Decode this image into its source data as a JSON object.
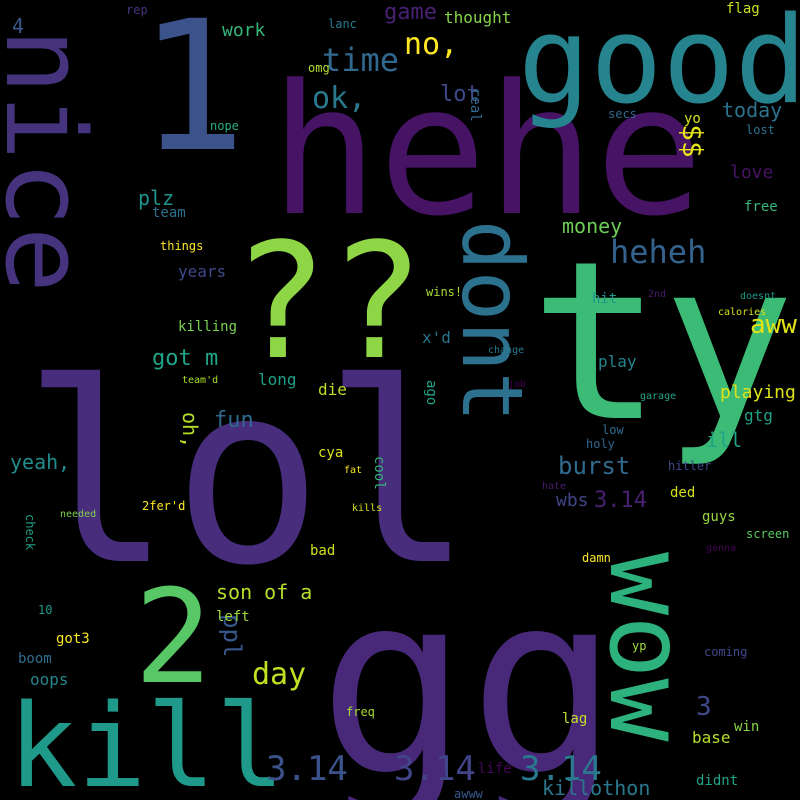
{
  "words": [
    {
      "text": "lol",
      "color": "#472d7b"
    },
    {
      "text": "gg",
      "color": "#482878"
    },
    {
      "text": "hehe",
      "color": "#471365"
    },
    {
      "text": "ty",
      "color": "#3bbb75"
    },
    {
      "text": "good",
      "color": "#25848e"
    },
    {
      "text": "??",
      "color": "#8ed645"
    },
    {
      "text": "1",
      "color": "#3b528b"
    },
    {
      "text": "nice",
      "color": "#46337e"
    },
    {
      "text": "kill",
      "color": "#1f9a8a"
    },
    {
      "text": "2",
      "color": "#58c765"
    },
    {
      "text": "wow",
      "color": "#2db27d"
    },
    {
      "text": "dont",
      "color": "#2c728e"
    },
    {
      "text": "heheh",
      "color": "#33638d"
    },
    {
      "text": "time",
      "color": "#31688e"
    },
    {
      "text": "ok,",
      "color": "#2a788e"
    },
    {
      "text": "no,",
      "color": "#fde725"
    },
    {
      "text": "aww",
      "color": "#e2e418"
    },
    {
      "text": "3.14",
      "color": "#3b528b"
    },
    {
      "text": "3.14",
      "color": "#414487"
    },
    {
      "text": "3.14",
      "color": "#2a788e"
    },
    {
      "text": "burst",
      "color": "#31688e"
    },
    {
      "text": "day",
      "color": "#c2df23"
    },
    {
      "text": "money",
      "color": "#6ece58"
    },
    {
      "text": "killothon",
      "color": "#2a788e"
    },
    {
      "text": "fun",
      "color": "#31688e"
    },
    {
      "text": "son of a",
      "color": "#b5de2b"
    },
    {
      "text": "ppl",
      "color": "#38588c"
    },
    {
      "text": "got m",
      "color": "#20a386"
    },
    {
      "text": "game",
      "color": "#482173"
    },
    {
      "text": "work",
      "color": "#35b779"
    },
    {
      "text": "lot",
      "color": "#3e4989"
    },
    {
      "text": "oh,",
      "color": "#b5de2b"
    },
    {
      "text": "yeah,",
      "color": "#228c8d"
    },
    {
      "text": "plz",
      "color": "#1f968b"
    },
    {
      "text": "today",
      "color": "#2c728e"
    },
    {
      "text": "love",
      "color": "#471365"
    },
    {
      "text": "playing",
      "color": "#dde318"
    },
    {
      "text": "wbs",
      "color": "#404688"
    },
    {
      "text": "3.14",
      "color": "#482173"
    },
    {
      "text": "3",
      "color": "#3e4989"
    },
    {
      "text": "ill",
      "color": "#20a386"
    },
    {
      "text": "base",
      "color": "#b8de29"
    },
    {
      "text": "gtg",
      "color": "#1fa188"
    },
    {
      "text": "thought",
      "color": "#86d549"
    },
    {
      "text": "oops",
      "color": "#25848e"
    },
    {
      "text": "die",
      "color": "#bddf26"
    },
    {
      "text": "long",
      "color": "#1f9e89"
    },
    {
      "text": "play",
      "color": "#25848e"
    },
    {
      "text": "x'd",
      "color": "#2c728e"
    },
    {
      "text": "$$",
      "color": "#e5e419"
    },
    {
      "text": "free",
      "color": "#35b779"
    },
    {
      "text": "team",
      "color": "#2d708e"
    },
    {
      "text": "years",
      "color": "#3e4989"
    },
    {
      "text": "things",
      "color": "#fde725"
    },
    {
      "text": "killing",
      "color": "#7ad151"
    },
    {
      "text": "cool",
      "color": "#35b779"
    },
    {
      "text": "got3",
      "color": "#fde725"
    },
    {
      "text": "boom",
      "color": "#2f6c8e"
    },
    {
      "text": "win",
      "color": "#8bd646"
    },
    {
      "text": "life",
      "color": "#450559"
    },
    {
      "text": "lag",
      "color": "#c2df23"
    },
    {
      "text": "didnt",
      "color": "#20a486"
    },
    {
      "text": "awww",
      "color": "#38588c"
    },
    {
      "text": "freq",
      "color": "#a5db36"
    },
    {
      "text": "flag",
      "color": "#cae11f"
    },
    {
      "text": "yo",
      "color": "#d2e21b"
    },
    {
      "text": "lost",
      "color": "#2c728e"
    },
    {
      "text": "secs",
      "color": "#31688e"
    },
    {
      "text": "nope",
      "color": "#29af7f"
    },
    {
      "text": "real",
      "color": "#31688e"
    },
    {
      "text": "omg",
      "color": "#b5de2b"
    },
    {
      "text": "lanc",
      "color": "#2a788e"
    },
    {
      "text": "rep",
      "color": "#46337e"
    },
    {
      "text": "4",
      "color": "#38588c"
    },
    {
      "text": "10",
      "color": "#1f9a8a"
    },
    {
      "text": "hit",
      "color": "#1f968b"
    },
    {
      "text": "wins!",
      "color": "#a8db34"
    },
    {
      "text": "2nd",
      "color": "#481a6c"
    },
    {
      "text": "doesnt",
      "color": "#1f9a8a"
    },
    {
      "text": "calories",
      "color": "#d2e21b"
    },
    {
      "text": "garage",
      "color": "#20a486"
    },
    {
      "text": "holy",
      "color": "#32648e"
    },
    {
      "text": "low",
      "color": "#2f6c8e"
    },
    {
      "text": "hitler",
      "color": "#3e4989"
    },
    {
      "text": "ded",
      "color": "#d5e21a"
    },
    {
      "text": "guys",
      "color": "#98d83e"
    },
    {
      "text": "screen",
      "color": "#5ec962"
    },
    {
      "text": "gonna",
      "color": "#440154"
    },
    {
      "text": "damn",
      "color": "#fde725"
    },
    {
      "text": "coming",
      "color": "#3e4989"
    },
    {
      "text": "yp",
      "color": "#a0da39"
    },
    {
      "text": "cya",
      "color": "#dde318"
    },
    {
      "text": "bad",
      "color": "#d0e11c"
    },
    {
      "text": "left",
      "color": "#a0da39"
    },
    {
      "text": "check",
      "color": "#1fa188"
    },
    {
      "text": "2fer'd",
      "color": "#fde725"
    },
    {
      "text": "needed",
      "color": "#7fd34e"
    },
    {
      "text": "kills",
      "color": "#d8e219"
    },
    {
      "text": "fat",
      "color": "#fde725"
    },
    {
      "text": "hate",
      "color": "#481a6c"
    },
    {
      "text": "team'd",
      "color": "#ade028"
    },
    {
      "text": "change",
      "color": "#287c8e"
    },
    {
      "text": "job",
      "color": "#440154"
    },
    {
      "text": "ago",
      "color": "#20a486"
    },
    {
      "text": "work",
      "color": "#35b779"
    }
  ]
}
